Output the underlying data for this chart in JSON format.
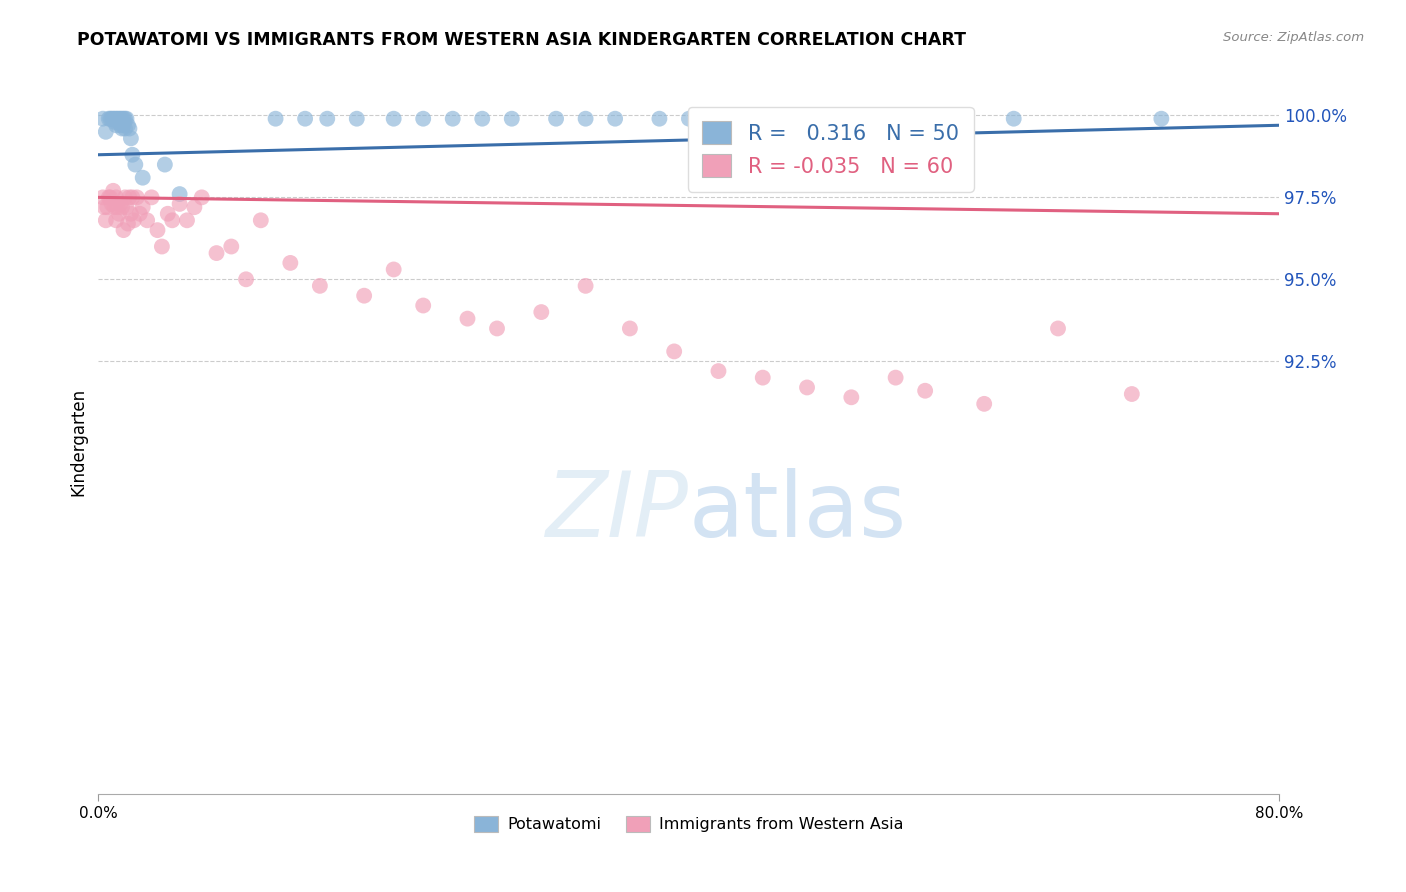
{
  "title": "POTAWATOMI VS IMMIGRANTS FROM WESTERN ASIA KINDERGARTEN CORRELATION CHART",
  "source": "Source: ZipAtlas.com",
  "ylabel": "Kindergarten",
  "xlim": [
    0.0,
    0.8
  ],
  "ylim": [
    0.793,
    1.008
  ],
  "ytick_values": [
    1.0,
    0.975,
    0.95,
    0.925
  ],
  "ytick_labels": [
    "100.0%",
    "97.5%",
    "95.0%",
    "92.5%"
  ],
  "xtick_values": [
    0.0,
    0.8
  ],
  "xtick_labels": [
    "0.0%",
    "80.0%"
  ],
  "blue_R": 0.316,
  "blue_N": 50,
  "pink_R": -0.035,
  "pink_N": 60,
  "blue_color": "#8ab4d8",
  "pink_color": "#f0a0b8",
  "blue_line_color": "#3a6eaa",
  "pink_line_color": "#e06080",
  "blue_scatter_x": [
    0.003,
    0.005,
    0.007,
    0.008,
    0.009,
    0.01,
    0.011,
    0.011,
    0.012,
    0.012,
    0.013,
    0.013,
    0.014,
    0.014,
    0.015,
    0.015,
    0.015,
    0.016,
    0.016,
    0.016,
    0.017,
    0.017,
    0.018,
    0.018,
    0.019,
    0.02,
    0.021,
    0.022,
    0.023,
    0.025,
    0.03,
    0.045,
    0.055,
    0.12,
    0.14,
    0.155,
    0.175,
    0.2,
    0.22,
    0.24,
    0.26,
    0.28,
    0.31,
    0.33,
    0.35,
    0.38,
    0.4,
    0.43,
    0.62,
    0.72
  ],
  "blue_scatter_y": [
    0.999,
    0.995,
    0.999,
    0.999,
    0.999,
    0.999,
    0.999,
    0.998,
    0.999,
    0.997,
    0.999,
    0.998,
    0.999,
    0.998,
    0.999,
    0.998,
    0.997,
    0.999,
    0.998,
    0.996,
    0.999,
    0.997,
    0.999,
    0.996,
    0.999,
    0.997,
    0.996,
    0.993,
    0.988,
    0.985,
    0.981,
    0.985,
    0.976,
    0.999,
    0.999,
    0.999,
    0.999,
    0.999,
    0.999,
    0.999,
    0.999,
    0.999,
    0.999,
    0.999,
    0.999,
    0.999,
    0.999,
    0.999,
    0.999,
    0.999
  ],
  "pink_scatter_x": [
    0.003,
    0.004,
    0.005,
    0.006,
    0.007,
    0.008,
    0.009,
    0.01,
    0.011,
    0.012,
    0.012,
    0.013,
    0.014,
    0.015,
    0.016,
    0.017,
    0.018,
    0.019,
    0.02,
    0.021,
    0.022,
    0.023,
    0.024,
    0.026,
    0.028,
    0.03,
    0.033,
    0.036,
    0.04,
    0.043,
    0.047,
    0.05,
    0.055,
    0.06,
    0.065,
    0.07,
    0.08,
    0.09,
    0.1,
    0.11,
    0.13,
    0.15,
    0.18,
    0.2,
    0.22,
    0.25,
    0.27,
    0.3,
    0.33,
    0.36,
    0.39,
    0.42,
    0.45,
    0.48,
    0.51,
    0.54,
    0.56,
    0.6,
    0.65,
    0.7
  ],
  "pink_scatter_y": [
    0.975,
    0.972,
    0.968,
    0.972,
    0.975,
    0.975,
    0.973,
    0.977,
    0.972,
    0.968,
    0.975,
    0.972,
    0.97,
    0.973,
    0.972,
    0.965,
    0.975,
    0.972,
    0.967,
    0.975,
    0.97,
    0.975,
    0.968,
    0.975,
    0.97,
    0.972,
    0.968,
    0.975,
    0.965,
    0.96,
    0.97,
    0.968,
    0.973,
    0.968,
    0.972,
    0.975,
    0.958,
    0.96,
    0.95,
    0.968,
    0.955,
    0.948,
    0.945,
    0.953,
    0.942,
    0.938,
    0.935,
    0.94,
    0.948,
    0.935,
    0.928,
    0.922,
    0.92,
    0.917,
    0.914,
    0.92,
    0.916,
    0.912,
    0.935,
    0.915
  ]
}
